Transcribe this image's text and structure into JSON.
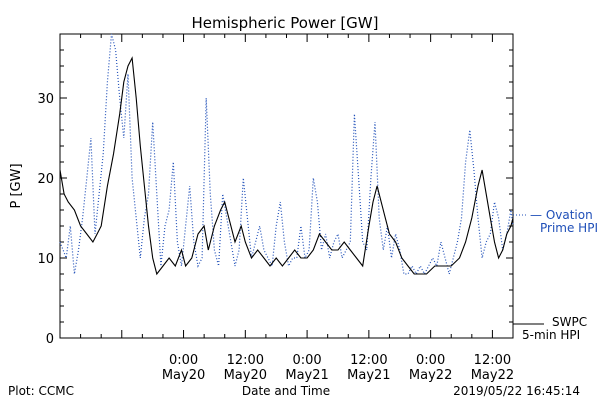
{
  "chart_data": {
    "type": "line",
    "title": "Hemispheric Power [GW]",
    "ylabel": "P [GW]",
    "xlabel": "Date and Time",
    "ylim": [
      0,
      38
    ],
    "xlim": [
      -6,
      16
    ],
    "yticks": [
      0,
      10,
      20,
      30
    ],
    "xticks": [
      {
        "x": 0,
        "label": "0:00",
        "sub": "May20"
      },
      {
        "x": 3,
        "label": "12:00",
        "sub": "May20"
      },
      {
        "x": 6,
        "label": "0:00",
        "sub": "May21"
      },
      {
        "x": 9,
        "label": "12:00",
        "sub": "May21"
      },
      {
        "x": 12,
        "label": "0:00",
        "sub": "May22"
      },
      {
        "x": 15,
        "label": "12:00",
        "sub": "May22"
      }
    ],
    "series": [
      {
        "name": "SWPC 5-min HPI",
        "color": "#000000",
        "style": "solid",
        "points": [
          [
            -6,
            21
          ],
          [
            -5.8,
            18
          ],
          [
            -5.6,
            17
          ],
          [
            -5.3,
            16
          ],
          [
            -5,
            14
          ],
          [
            -4.7,
            13
          ],
          [
            -4.4,
            12
          ],
          [
            -4.2,
            13
          ],
          [
            -4,
            14
          ],
          [
            -3.7,
            19
          ],
          [
            -3.4,
            23
          ],
          [
            -3.1,
            28
          ],
          [
            -2.9,
            32
          ],
          [
            -2.7,
            34
          ],
          [
            -2.5,
            35
          ],
          [
            -2.3,
            30
          ],
          [
            -2.1,
            24
          ],
          [
            -1.9,
            19
          ],
          [
            -1.7,
            14
          ],
          [
            -1.5,
            10
          ],
          [
            -1.3,
            8
          ],
          [
            -1.0,
            9
          ],
          [
            -0.7,
            10
          ],
          [
            -0.4,
            9
          ],
          [
            -0.1,
            11
          ],
          [
            0.1,
            9
          ],
          [
            0.4,
            10
          ],
          [
            0.7,
            13
          ],
          [
            1.0,
            14
          ],
          [
            1.2,
            11
          ],
          [
            1.5,
            14
          ],
          [
            1.8,
            16
          ],
          [
            2.0,
            17
          ],
          [
            2.3,
            14
          ],
          [
            2.5,
            12
          ],
          [
            2.8,
            14
          ],
          [
            3.0,
            12
          ],
          [
            3.3,
            10
          ],
          [
            3.6,
            11
          ],
          [
            3.9,
            10
          ],
          [
            4.2,
            9
          ],
          [
            4.5,
            10
          ],
          [
            4.8,
            9
          ],
          [
            5.1,
            10
          ],
          [
            5.4,
            11
          ],
          [
            5.7,
            10
          ],
          [
            6.0,
            10
          ],
          [
            6.3,
            11
          ],
          [
            6.6,
            13
          ],
          [
            6.9,
            12
          ],
          [
            7.2,
            11
          ],
          [
            7.5,
            11
          ],
          [
            7.8,
            12
          ],
          [
            8.1,
            11
          ],
          [
            8.4,
            10
          ],
          [
            8.7,
            9
          ],
          [
            9.0,
            14
          ],
          [
            9.2,
            17
          ],
          [
            9.4,
            19
          ],
          [
            9.6,
            17
          ],
          [
            9.8,
            15
          ],
          [
            10.0,
            13
          ],
          [
            10.3,
            12
          ],
          [
            10.6,
            10
          ],
          [
            10.9,
            9
          ],
          [
            11.2,
            8
          ],
          [
            11.5,
            8
          ],
          [
            11.8,
            8
          ],
          [
            12.2,
            9
          ],
          [
            12.6,
            9
          ],
          [
            13.0,
            9
          ],
          [
            13.4,
            10
          ],
          [
            13.7,
            12
          ],
          [
            14.0,
            15
          ],
          [
            14.3,
            19
          ],
          [
            14.5,
            21
          ],
          [
            14.7,
            18
          ],
          [
            14.9,
            15
          ],
          [
            15.1,
            12
          ],
          [
            15.3,
            10
          ],
          [
            15.5,
            11
          ],
          [
            15.7,
            13
          ],
          [
            15.9,
            14
          ],
          [
            16.0,
            15
          ]
        ]
      },
      {
        "name": "Ovation Prime HPI",
        "color": "#1f4fb8",
        "style": "dotted",
        "points": [
          [
            -6,
            12
          ],
          [
            -5.7,
            10
          ],
          [
            -5.5,
            14
          ],
          [
            -5.3,
            8
          ],
          [
            -5.1,
            11
          ],
          [
            -4.9,
            15
          ],
          [
            -4.7,
            20
          ],
          [
            -4.5,
            25
          ],
          [
            -4.3,
            13
          ],
          [
            -4.1,
            18
          ],
          [
            -3.9,
            23
          ],
          [
            -3.7,
            32
          ],
          [
            -3.5,
            38
          ],
          [
            -3.3,
            36
          ],
          [
            -3.1,
            30
          ],
          [
            -2.9,
            25
          ],
          [
            -2.7,
            33
          ],
          [
            -2.5,
            20
          ],
          [
            -2.3,
            15
          ],
          [
            -2.1,
            10
          ],
          [
            -1.9,
            15
          ],
          [
            -1.7,
            18
          ],
          [
            -1.5,
            27
          ],
          [
            -1.3,
            18
          ],
          [
            -1.1,
            9
          ],
          [
            -0.9,
            14
          ],
          [
            -0.7,
            16
          ],
          [
            -0.5,
            22
          ],
          [
            -0.3,
            12
          ],
          [
            -0.1,
            9
          ],
          [
            0.1,
            14
          ],
          [
            0.3,
            19
          ],
          [
            0.5,
            12
          ],
          [
            0.7,
            9
          ],
          [
            0.9,
            10
          ],
          [
            1.1,
            30
          ],
          [
            1.3,
            18
          ],
          [
            1.5,
            11
          ],
          [
            1.7,
            9
          ],
          [
            1.9,
            18
          ],
          [
            2.1,
            15
          ],
          [
            2.3,
            12
          ],
          [
            2.5,
            9
          ],
          [
            2.7,
            11
          ],
          [
            2.9,
            20
          ],
          [
            3.1,
            15
          ],
          [
            3.3,
            10
          ],
          [
            3.5,
            12
          ],
          [
            3.7,
            14
          ],
          [
            3.9,
            11
          ],
          [
            4.1,
            10
          ],
          [
            4.3,
            9
          ],
          [
            4.5,
            14
          ],
          [
            4.7,
            17
          ],
          [
            4.9,
            12
          ],
          [
            5.1,
            9
          ],
          [
            5.3,
            10
          ],
          [
            5.5,
            10
          ],
          [
            5.7,
            14
          ],
          [
            5.9,
            10
          ],
          [
            6.1,
            11
          ],
          [
            6.3,
            20
          ],
          [
            6.5,
            17
          ],
          [
            6.7,
            11
          ],
          [
            6.9,
            13
          ],
          [
            7.1,
            10
          ],
          [
            7.3,
            12
          ],
          [
            7.5,
            13
          ],
          [
            7.7,
            10
          ],
          [
            7.9,
            11
          ],
          [
            8.1,
            12
          ],
          [
            8.3,
            28
          ],
          [
            8.5,
            20
          ],
          [
            8.7,
            12
          ],
          [
            8.9,
            11
          ],
          [
            9.1,
            20
          ],
          [
            9.3,
            27
          ],
          [
            9.5,
            15
          ],
          [
            9.7,
            11
          ],
          [
            9.9,
            14
          ],
          [
            10.1,
            10
          ],
          [
            10.3,
            13
          ],
          [
            10.5,
            11
          ],
          [
            10.7,
            8
          ],
          [
            10.9,
            8
          ],
          [
            11.1,
            9
          ],
          [
            11.3,
            8
          ],
          [
            11.5,
            9
          ],
          [
            11.7,
            8
          ],
          [
            11.9,
            9
          ],
          [
            12.1,
            10
          ],
          [
            12.3,
            9
          ],
          [
            12.5,
            12
          ],
          [
            12.7,
            10
          ],
          [
            12.9,
            8
          ],
          [
            13.1,
            10
          ],
          [
            13.3,
            12
          ],
          [
            13.5,
            15
          ],
          [
            13.7,
            22
          ],
          [
            13.9,
            26
          ],
          [
            14.1,
            21
          ],
          [
            14.3,
            15
          ],
          [
            14.5,
            10
          ],
          [
            14.7,
            12
          ],
          [
            14.9,
            13
          ],
          [
            15.1,
            17
          ],
          [
            15.3,
            15
          ],
          [
            15.5,
            11
          ],
          [
            15.7,
            13
          ],
          [
            15.9,
            16
          ],
          [
            16.0,
            14
          ]
        ]
      }
    ],
    "legend": [
      {
        "text1": "— Ovation",
        "text2": "Prime HPI",
        "color": "#1f4fb8",
        "placement": "right-middle"
      },
      {
        "text1": "SWPC",
        "text2": "5-min HPI",
        "color": "#000000",
        "placement": "right-bottom"
      }
    ]
  },
  "footer": {
    "left": "Plot: CCMC",
    "center": "Date and Time",
    "right": "2019/05/22 16:45:14"
  }
}
